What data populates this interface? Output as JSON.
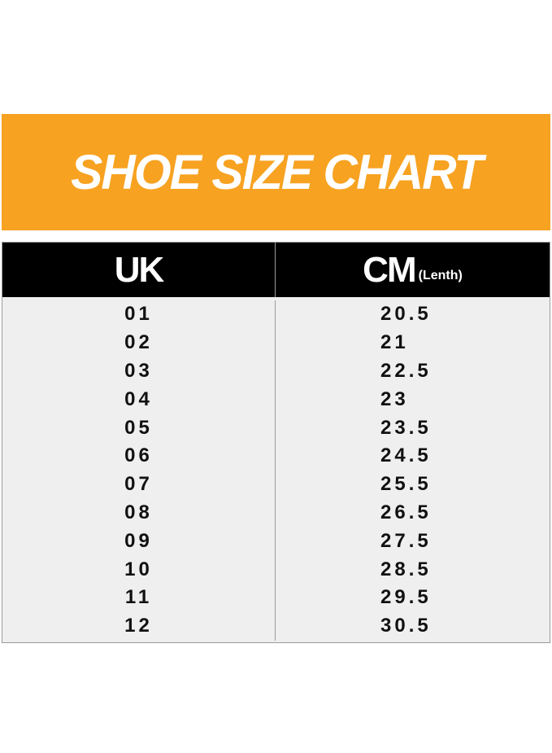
{
  "title": "SHOE SIZE CHART",
  "colors": {
    "banner": "#f7a221",
    "header": "#000000",
    "body": "#efefef"
  },
  "table": {
    "headers": {
      "uk": "UK",
      "cm": "CM",
      "cm_note": "(Lenth)"
    },
    "uk": [
      "01",
      "02",
      "03",
      "04",
      "05",
      "06",
      "07",
      "08",
      "09",
      "10",
      "11",
      "12"
    ],
    "cm": [
      "20.5",
      "21",
      "22.5",
      "23",
      "23.5",
      "24.5",
      "25.5",
      "26.5",
      "27.5",
      "28.5",
      "29.5",
      "30.5"
    ]
  }
}
